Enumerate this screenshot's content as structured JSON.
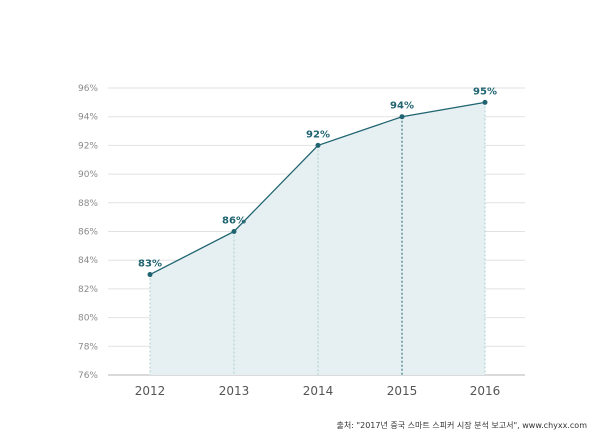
{
  "chart_data": {
    "type": "area",
    "title": "",
    "xlabel": "",
    "ylabel": "",
    "categories": [
      "2012",
      "2013",
      "2014",
      "2015",
      "2016"
    ],
    "values": [
      83,
      86,
      92,
      94,
      95
    ],
    "data_labels": [
      "83%",
      "86%",
      "92%",
      "94%",
      "95%"
    ],
    "y_ticks": [
      76,
      78,
      80,
      82,
      84,
      86,
      88,
      90,
      92,
      94,
      96
    ],
    "y_tick_labels": [
      "76%",
      "78%",
      "80%",
      "82%",
      "84%",
      "86%",
      "88%",
      "90%",
      "92%",
      "94%",
      "96%"
    ],
    "ylim": [
      76,
      96
    ],
    "grid": true,
    "colors": {
      "line": "#1f6470",
      "fill": "#e6f0f2",
      "grid": "#e2e2e2",
      "axis": "#b5b5b5",
      "label": "#1f6470"
    }
  },
  "source": {
    "text": "출처: \"2017년 중국 스마트 스피커 시장 분석 보고서\", www.chyxx.com"
  }
}
